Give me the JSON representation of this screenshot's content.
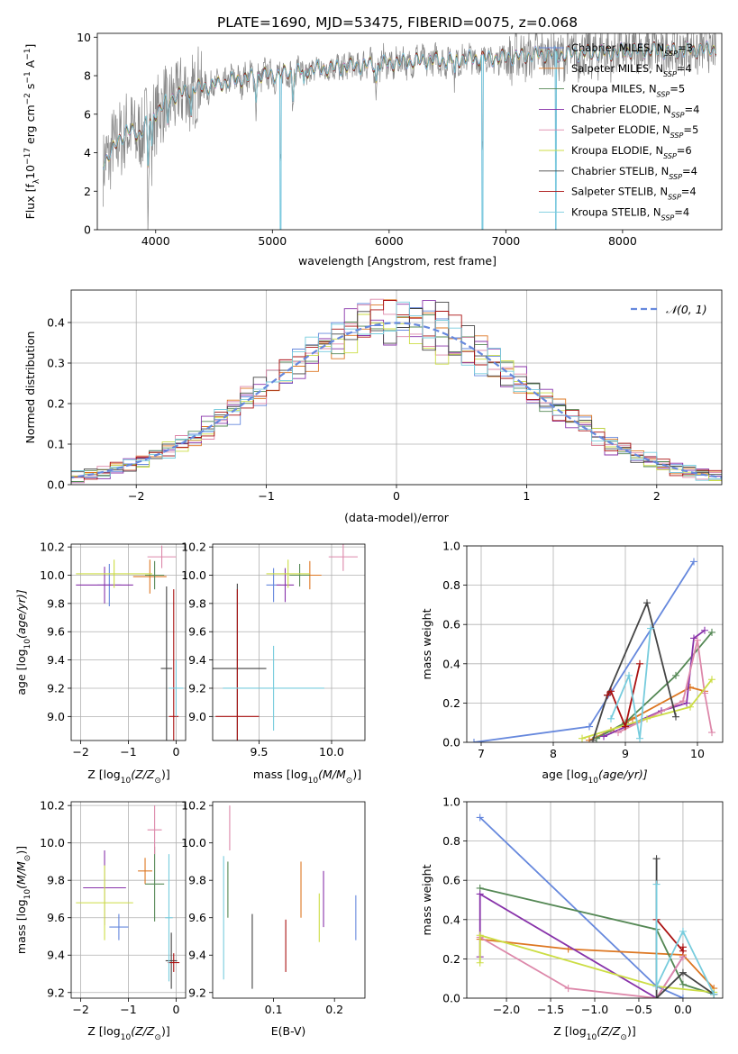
{
  "figure": {
    "title": "PLATE=1690, MJD=53475, FIBERID=0075, z=0.068"
  },
  "colors": {
    "model_series": [
      "#6688dd",
      "#dd7722",
      "#558855",
      "#8833aa",
      "#dd88aa",
      "#ccdd44",
      "#444444",
      "#aa1111",
      "#77ccdd"
    ],
    "observed": "#888888",
    "gaussian": "#6688dd",
    "grid": "#b0b0b0"
  },
  "chart_data": [
    {
      "id": "spectrum",
      "type": "line",
      "xlabel": "wavelength [Angstrom, rest frame]",
      "ylabel": "Flux [f",
      "ylabel_parts": [
        "Flux [f",
        "λ",
        "10",
        "−17",
        " erg cm",
        "−2",
        " s",
        "−1",
        " A",
        "−1",
        "]"
      ],
      "xlim": [
        3500,
        8850
      ],
      "ylim": [
        0,
        10.2
      ],
      "xticks": [
        4000,
        5000,
        6000,
        7000,
        8000
      ],
      "yticks": [
        0,
        2,
        4,
        6,
        8,
        10
      ],
      "grid": false,
      "legend_position": "right",
      "continuum": {
        "x": [
          3550,
          3650,
          3750,
          3850,
          3950,
          4050,
          4150,
          4300,
          4500,
          4700,
          4900,
          5100,
          5300,
          5500,
          5700,
          5900,
          6100,
          6300,
          6500,
          6700,
          6900,
          7100,
          7300,
          7500,
          7700,
          7900,
          8100,
          8300,
          8500,
          8800
        ],
        "y": [
          3.5,
          4.3,
          5.2,
          4.9,
          5.8,
          6.4,
          6.9,
          7.3,
          7.5,
          7.8,
          8.0,
          8.1,
          8.3,
          8.4,
          8.5,
          8.6,
          8.7,
          8.8,
          8.8,
          8.9,
          8.9,
          9.0,
          9.1,
          9.1,
          9.2,
          9.2,
          9.3,
          9.3,
          9.3,
          9.4
        ]
      },
      "absorption_features": [
        {
          "x": 3934,
          "depth": 2.5
        },
        {
          "x": 3968,
          "depth": 1.8
        },
        {
          "x": 4102,
          "depth": 1.2
        },
        {
          "x": 4304,
          "depth": 1.4
        },
        {
          "x": 4861,
          "depth": 1.1
        },
        {
          "x": 5070,
          "depth": 7.8
        },
        {
          "x": 5175,
          "depth": 1.3
        },
        {
          "x": 5270,
          "depth": 0.9
        },
        {
          "x": 5890,
          "depth": 1.0
        },
        {
          "x": 6563,
          "depth": 0.8
        },
        {
          "x": 6800,
          "depth": 8.5
        },
        {
          "x": 7430,
          "depth": 9.0
        }
      ],
      "series": [
        {
          "name": "Chabrier MILES, N",
          "nssp": "3"
        },
        {
          "name": "Salpeter MILES, N",
          "nssp": "4"
        },
        {
          "name": "Kroupa MILES, N",
          "nssp": "5"
        },
        {
          "name": "Chabrier ELODIE, N",
          "nssp": "4"
        },
        {
          "name": "Salpeter ELODIE, N",
          "nssp": "5"
        },
        {
          "name": "Kroupa ELODIE, N",
          "nssp": "6"
        },
        {
          "name": "Chabrier STELIB, N",
          "nssp": "4"
        },
        {
          "name": "Salpeter STELIB, N",
          "nssp": "4"
        },
        {
          "name": "Kroupa STELIB, N",
          "nssp": "4"
        }
      ],
      "nssp_sub": "SSP"
    },
    {
      "id": "residuals",
      "type": "histogram",
      "xlabel": "(data-model)/error",
      "ylabel": "Normed distribution",
      "xlim": [
        -2.5,
        2.5
      ],
      "ylim": [
        0,
        0.48
      ],
      "xticks": [
        -2,
        -1,
        0,
        1,
        2
      ],
      "yticks": [
        0.0,
        0.1,
        0.2,
        0.3,
        0.4
      ],
      "grid": true,
      "bin_width": 0.1,
      "legend_position": "top-right",
      "legend_label": "𝒩(0, 1)",
      "gaussian": {
        "mean": 0,
        "sigma": 1
      }
    },
    {
      "id": "age-vs-Z",
      "type": "errorbar",
      "xlabel": "Z [log",
      "xlabel_parts": [
        "Z [log",
        "10",
        "(Z/Z",
        "⊙",
        ")]"
      ],
      "ylabel_parts": [
        "age  [log",
        "10",
        "(age/yr)]"
      ],
      "xlim": [
        -2.2,
        0.2
      ],
      "ylim": [
        8.83,
        10.22
      ],
      "xticks": [
        -2,
        -1,
        0
      ],
      "yticks": [
        9.0,
        9.2,
        9.4,
        9.6,
        9.8,
        10.0,
        10.2
      ],
      "grid": true,
      "points": [
        {
          "x": -1.4,
          "y": 9.93,
          "xerr": 0.25,
          "yerr": 0.15
        },
        {
          "x": -0.55,
          "y": 9.99,
          "xerr": 0.35,
          "yerr": 0.12
        },
        {
          "x": -0.45,
          "y": 10.0,
          "xerr": 0.2,
          "yerr": 0.1
        },
        {
          "x": -1.5,
          "y": 9.93,
          "xerr": 0.6,
          "yerr": 0.13
        },
        {
          "x": -0.3,
          "y": 10.13,
          "xerr": 0.3,
          "yerr": 0.08
        },
        {
          "x": -1.3,
          "y": 10.01,
          "xerr": 0.8,
          "yerr": 0.1
        },
        {
          "x": -0.2,
          "y": 9.34,
          "xerr": 0.12,
          "yerr": 0.58
        },
        {
          "x": -0.05,
          "y": 9.0,
          "xerr": 0.1,
          "yerr": 0.9
        },
        {
          "x": 0.0,
          "y": 9.2,
          "xerr": 0.15,
          "yerr": 0.2
        }
      ]
    },
    {
      "id": "age-vs-mass",
      "type": "errorbar",
      "xlabel_parts": [
        "mass [log",
        "10",
        "(M/M",
        "⊙",
        ")]"
      ],
      "ylabel_parts": [
        "",
        "",
        ""
      ],
      "xlim": [
        9.18,
        10.23
      ],
      "ylim": [
        8.83,
        10.22
      ],
      "xticks": [
        9.5,
        10.0
      ],
      "yticks": [
        9.0,
        9.2,
        9.4,
        9.6,
        9.8,
        10.0,
        10.2
      ],
      "grid": true,
      "points": [
        {
          "x": 9.6,
          "y": 9.93,
          "xerr": 0.05,
          "yerr": 0.12
        },
        {
          "x": 9.85,
          "y": 10.0,
          "xerr": 0.08,
          "yerr": 0.1
        },
        {
          "x": 9.78,
          "y": 10.0,
          "xerr": 0.07,
          "yerr": 0.08
        },
        {
          "x": 9.68,
          "y": 9.93,
          "xerr": 0.06,
          "yerr": 0.12
        },
        {
          "x": 10.08,
          "y": 10.13,
          "xerr": 0.1,
          "yerr": 0.1
        },
        {
          "x": 9.7,
          "y": 10.01,
          "xerr": 0.15,
          "yerr": 0.1
        },
        {
          "x": 9.35,
          "y": 9.34,
          "xerr": 0.2,
          "yerr": 0.6
        },
        {
          "x": 9.35,
          "y": 9.0,
          "xerr": 0.15,
          "yerr": 0.9
        },
        {
          "x": 9.6,
          "y": 9.2,
          "xerr": 0.35,
          "yerr": 0.3
        }
      ]
    },
    {
      "id": "weight-vs-age",
      "type": "line",
      "xlabel_parts": [
        "age  [log",
        "10",
        "(age/yr)]"
      ],
      "ylabel": "mass weight",
      "xlim": [
        6.8,
        10.35
      ],
      "ylim": [
        0,
        1.0
      ],
      "xticks": [
        7,
        8,
        9,
        10
      ],
      "yticks": [
        0.0,
        0.2,
        0.4,
        0.6,
        0.8,
        1.0
      ],
      "grid": true,
      "series": [
        {
          "x": [
            6.9,
            8.5,
            9.95
          ],
          "y": [
            0.0,
            0.08,
            0.92
          ]
        },
        {
          "x": [
            8.5,
            8.8,
            9.1,
            9.9,
            10.1
          ],
          "y": [
            0.01,
            0.06,
            0.12,
            0.28,
            0.26
          ]
        },
        {
          "x": [
            8.6,
            9.0,
            9.7,
            10.2
          ],
          "y": [
            0.02,
            0.1,
            0.34,
            0.56
          ]
        },
        {
          "x": [
            8.7,
            9.5,
            9.85,
            9.95,
            10.1
          ],
          "y": [
            0.03,
            0.16,
            0.2,
            0.53,
            0.57
          ]
        },
        {
          "x": [
            8.9,
            9.8,
            10.0,
            10.1,
            10.2
          ],
          "y": [
            0.05,
            0.21,
            0.52,
            0.25,
            0.05
          ]
        },
        {
          "x": [
            8.4,
            9.3,
            9.9,
            10.2
          ],
          "y": [
            0.02,
            0.12,
            0.18,
            0.32
          ]
        },
        {
          "x": [
            8.55,
            8.75,
            9.3,
            9.7
          ],
          "y": [
            0.01,
            0.24,
            0.71,
            0.13
          ]
        },
        {
          "x": [
            8.75,
            8.8,
            9.0,
            9.2
          ],
          "y": [
            0.24,
            0.26,
            0.08,
            0.4
          ]
        },
        {
          "x": [
            8.8,
            9.05,
            9.2,
            9.35
          ],
          "y": [
            0.12,
            0.34,
            0.02,
            0.58
          ]
        }
      ]
    },
    {
      "id": "mass-vs-Z",
      "type": "errorbar",
      "xlabel_parts": [
        "Z [log",
        "10",
        "(Z/Z",
        "⊙",
        ")]"
      ],
      "ylabel_parts": [
        "mass [log",
        "10",
        "(M/M",
        "⊙",
        ")]"
      ],
      "xlim": [
        -2.2,
        0.2
      ],
      "ylim": [
        9.17,
        10.22
      ],
      "xticks": [
        -2,
        -1,
        0
      ],
      "yticks": [
        9.2,
        9.4,
        9.6,
        9.8,
        10.0,
        10.2
      ],
      "grid": true,
      "points": [
        {
          "x": -1.2,
          "y": 9.55,
          "xerr": 0.2,
          "yerr": 0.07
        },
        {
          "x": -0.65,
          "y": 9.85,
          "xerr": 0.15,
          "yerr": 0.07
        },
        {
          "x": -0.45,
          "y": 9.78,
          "xerr": 0.2,
          "yerr": 0.2
        },
        {
          "x": -1.5,
          "y": 9.76,
          "xerr": 0.45,
          "yerr": 0.2
        },
        {
          "x": -0.45,
          "y": 10.07,
          "xerr": 0.15,
          "yerr": 0.13
        },
        {
          "x": -1.5,
          "y": 9.68,
          "xerr": 0.6,
          "yerr": 0.2
        },
        {
          "x": -0.1,
          "y": 9.37,
          "xerr": 0.12,
          "yerr": 0.15
        },
        {
          "x": -0.05,
          "y": 9.36,
          "xerr": 0.12,
          "yerr": 0.05
        },
        {
          "x": -0.15,
          "y": 9.6,
          "xerr": 0.08,
          "yerr": 0.34
        }
      ]
    },
    {
      "id": "mass-vs-EBV",
      "type": "errorbar",
      "xlabel": "E(B-V)",
      "xlim": [
        0.0,
        0.25
      ],
      "ylim": [
        9.17,
        10.22
      ],
      "xticks": [
        0.1,
        0.2
      ],
      "yticks": [
        9.2,
        9.4,
        9.6,
        9.8,
        10.0,
        10.2
      ],
      "grid": false,
      "points": [
        {
          "x": 0.235,
          "y": 9.6,
          "xerr": 0.0,
          "yerr": 0.12
        },
        {
          "x": 0.145,
          "y": 9.75,
          "xerr": 0.0,
          "yerr": 0.15
        },
        {
          "x": 0.025,
          "y": 9.75,
          "xerr": 0.0,
          "yerr": 0.15
        },
        {
          "x": 0.182,
          "y": 9.7,
          "xerr": 0.0,
          "yerr": 0.15
        },
        {
          "x": 0.028,
          "y": 10.08,
          "xerr": 0.0,
          "yerr": 0.12
        },
        {
          "x": 0.175,
          "y": 9.6,
          "xerr": 0.0,
          "yerr": 0.13
        },
        {
          "x": 0.065,
          "y": 9.42,
          "xerr": 0.0,
          "yerr": 0.2
        },
        {
          "x": 0.12,
          "y": 9.45,
          "xerr": 0.0,
          "yerr": 0.14
        },
        {
          "x": 0.018,
          "y": 9.6,
          "xerr": 0.0,
          "yerr": 0.33
        }
      ]
    },
    {
      "id": "weight-vs-Z",
      "type": "line",
      "xlabel_parts": [
        "Z [log",
        "10",
        "(Z/Z",
        "⊙",
        ")]"
      ],
      "ylabel": "mass weight",
      "xlim": [
        -2.45,
        0.45
      ],
      "ylim": [
        0,
        1.0
      ],
      "xticks": [
        -2.0,
        -1.5,
        -1.0,
        -0.5,
        0.0
      ],
      "yticks": [
        0.0,
        0.2,
        0.4,
        0.6,
        0.8,
        1.0
      ],
      "grid": true,
      "series": [
        {
          "x": [
            -2.3,
            -0.3,
            0.0
          ],
          "y": [
            0.92,
            0.06,
            0.0
          ]
        },
        {
          "x": [
            -2.3,
            -1.3,
            0.0,
            0.35
          ],
          "y": [
            0.3,
            0.25,
            0.22,
            0.05
          ]
        },
        {
          "x": [
            -2.3,
            -0.3,
            0.0,
            0.35
          ],
          "y": [
            0.56,
            0.35,
            0.07,
            0.02
          ]
        },
        {
          "x": [
            -2.3,
            -2.3,
            -0.3,
            0.0
          ],
          "y": [
            0.21,
            0.53,
            0.0,
            0.21
          ]
        },
        {
          "x": [
            -2.3,
            -1.3,
            -0.3,
            0.0
          ],
          "y": [
            0.31,
            0.05,
            0.0,
            0.21
          ]
        },
        {
          "x": [
            -2.3,
            -2.3,
            -0.3,
            0.35
          ],
          "y": [
            0.18,
            0.32,
            0.06,
            0.03
          ]
        },
        {
          "x": [
            -0.3,
            -0.3,
            0.0,
            0.35
          ],
          "y": [
            0.71,
            0.0,
            0.13,
            0.02
          ]
        },
        {
          "x": [
            -0.3,
            0.0,
            0.0
          ],
          "y": [
            0.4,
            0.24,
            0.26
          ]
        },
        {
          "x": [
            -0.3,
            -0.3,
            0.0,
            0.35
          ],
          "y": [
            0.58,
            0.06,
            0.34,
            0.02
          ]
        }
      ]
    }
  ]
}
